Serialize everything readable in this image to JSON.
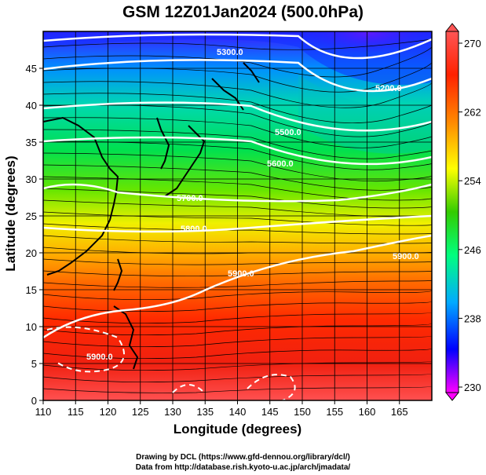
{
  "title": "GSM 12Z01Jan2024 (500.0hPa)",
  "x_axis_label": "Longitude (degrees)",
  "y_axis_label": "Latitude  (degrees)",
  "credit_line1": "Drawing by DCL (https://www.gfd-dennou.org/library/dcl/)",
  "credit_line2": "Data from http://database.rish.kyoto-u.ac.jp/arch/jmadata/",
  "map": {
    "lon_range": [
      110,
      170
    ],
    "lat_range": [
      0,
      50
    ],
    "x_ticks": [
      "110",
      "115",
      "120",
      "125",
      "130",
      "135",
      "140",
      "145",
      "150",
      "155",
      "160",
      "165"
    ],
    "y_ticks": [
      "0",
      "5",
      "10",
      "15",
      "20",
      "25",
      "30",
      "35",
      "40",
      "45"
    ],
    "contour_labels": [
      "5300.0",
      "5200.0",
      "5500.0",
      "5600.0",
      "5700.0",
      "5800.0",
      "5900.0",
      "5900.0",
      "5900.0"
    ]
  },
  "colorbar": {
    "ticks": [
      "230",
      "238",
      "246",
      "254",
      "262",
      "270"
    ],
    "min": 230,
    "max": 270,
    "colors": [
      "#ff00ff",
      "#0000ff",
      "#00aaff",
      "#00ff7f",
      "#33cc00",
      "#ffff00",
      "#ff8800",
      "#ff2200",
      "#ff5555"
    ]
  }
}
